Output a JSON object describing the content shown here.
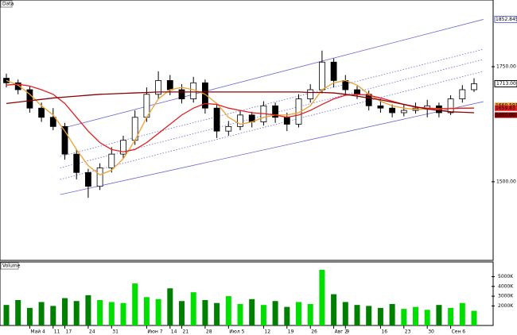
{
  "chart_data": {
    "type": "candlestick",
    "title": "Data",
    "volume_title": "Volume",
    "categories": [
      null,
      null,
      "Май 4",
      null,
      "11",
      "17",
      null,
      "24",
      null,
      "31",
      null,
      null,
      "Июн 7",
      null,
      "14",
      "21",
      null,
      "28",
      null,
      "Июл 5",
      null,
      null,
      "12",
      null,
      "19",
      null,
      "26",
      null,
      "Авг 2",
      "9",
      null,
      null,
      "16",
      null,
      "23",
      null,
      "30",
      null,
      "Сен 6",
      null,
      null
    ],
    "ohlc": [
      [
        1725,
        1735,
        1705,
        1715
      ],
      [
        1715,
        1722,
        1690,
        1700
      ],
      [
        1700,
        1708,
        1650,
        1660
      ],
      [
        1660,
        1672,
        1630,
        1640
      ],
      [
        1640,
        1660,
        1612,
        1620
      ],
      [
        1620,
        1628,
        1548,
        1560
      ],
      [
        1560,
        1570,
        1505,
        1520
      ],
      [
        1520,
        1528,
        1465,
        1490
      ],
      [
        1490,
        1540,
        1482,
        1530
      ],
      [
        1530,
        1575,
        1520,
        1560
      ],
      [
        1560,
        1600,
        1550,
        1590
      ],
      [
        1590,
        1655,
        1580,
        1640
      ],
      [
        1640,
        1705,
        1630,
        1690
      ],
      [
        1690,
        1740,
        1680,
        1720
      ],
      [
        1720,
        1732,
        1688,
        1700
      ],
      [
        1700,
        1712,
        1670,
        1680
      ],
      [
        1680,
        1728,
        1672,
        1715
      ],
      [
        1715,
        1722,
        1648,
        1660
      ],
      [
        1660,
        1668,
        1595,
        1610
      ],
      [
        1610,
        1632,
        1600,
        1620
      ],
      [
        1620,
        1655,
        1612,
        1645
      ],
      [
        1645,
        1652,
        1618,
        1630
      ],
      [
        1630,
        1675,
        1622,
        1665
      ],
      [
        1665,
        1672,
        1628,
        1640
      ],
      [
        1640,
        1650,
        1610,
        1625
      ],
      [
        1625,
        1690,
        1618,
        1680
      ],
      [
        1680,
        1712,
        1672,
        1700
      ],
      [
        1700,
        1785,
        1692,
        1760
      ],
      [
        1760,
        1768,
        1705,
        1720
      ],
      [
        1720,
        1732,
        1690,
        1700
      ],
      [
        1700,
        1708,
        1680,
        1690
      ],
      [
        1690,
        1698,
        1655,
        1665
      ],
      [
        1665,
        1680,
        1650,
        1660
      ],
      [
        1660,
        1668,
        1640,
        1650
      ],
      [
        1650,
        1668,
        1642,
        1655
      ],
      [
        1655,
        1672,
        1648,
        1660
      ],
      [
        1660,
        1678,
        1640,
        1665
      ],
      [
        1665,
        1672,
        1640,
        1650
      ],
      [
        1650,
        1688,
        1645,
        1680
      ],
      [
        1680,
        1710,
        1672,
        1700
      ],
      [
        1700,
        1725,
        1695,
        1713
      ]
    ],
    "last_close_label": "1713.00",
    "volume": [
      2100,
      2600,
      1800,
      2400,
      2000,
      2800,
      2500,
      3100,
      2600,
      2400,
      2300,
      4300,
      2900,
      2700,
      3800,
      2500,
      3400,
      2600,
      2300,
      3000,
      2200,
      2700,
      2100,
      2500,
      1900,
      2400,
      2200,
      5700,
      3200,
      2400,
      2100,
      2000,
      1800,
      2200,
      1700,
      1900,
      1600,
      2100,
      1800,
      2300,
      1500
    ],
    "series": [
      {
        "color": "#f0a030",
        "values": [
          1720,
          1710,
          1690,
          1665,
          1645,
          1610,
          1570,
          1535,
          1515,
          1525,
          1550,
          1590,
          1640,
          1680,
          1700,
          1705,
          1700,
          1690,
          1670,
          1640,
          1625,
          1630,
          1640,
          1645,
          1645,
          1650,
          1665,
          1700,
          1715,
          1720,
          1710,
          1690,
          1675,
          1665,
          1660,
          1657,
          1658,
          1658,
          1660,
          1660,
          1660.5912
        ]
      },
      {
        "color": "#e02020",
        "values": [
          1710,
          1712,
          1708,
          1700,
          1690,
          1670,
          1640,
          1610,
          1585,
          1570,
          1565,
          1570,
          1585,
          1605,
          1625,
          1645,
          1660,
          1670,
          1668,
          1660,
          1655,
          1650,
          1648,
          1645,
          1640,
          1645,
          1655,
          1668,
          1680,
          1688,
          1690,
          1688,
          1682,
          1675,
          1668,
          1662,
          1660,
          1659,
          1659,
          1659.8,
          1659.83
        ]
      },
      {
        "color": "#8b0000",
        "values": [
          1670,
          1673,
          1676,
          1679,
          1682,
          1684,
          1686,
          1688,
          1690,
          1691,
          1692,
          1693,
          1694,
          1695,
          1695,
          1695,
          1695,
          1695,
          1695,
          1695,
          1695,
          1695,
          1695,
          1695,
          1695,
          1695,
          1694,
          1694,
          1693,
          1690,
          1686,
          1682,
          1678,
          1673,
          1668,
          1663,
          1658,
          1655,
          1652,
          1651,
          1650
        ],
        "value_labels": [
          null,
          null,
          null,
          null,
          null,
          null,
          null,
          null,
          null,
          null,
          null,
          null,
          null,
          null,
          null,
          null,
          null,
          null,
          null,
          null,
          null,
          null,
          null,
          null,
          null,
          null,
          null,
          null,
          null,
          null,
          null,
          null,
          null,
          null,
          null,
          null,
          null,
          null,
          null,
          null,
          "1650.00"
        ]
      }
    ],
    "channels": [
      {
        "style": "solid",
        "start": [
          4.6,
          1615
        ],
        "end": [
          40.8,
          1852.8456
        ]
      },
      {
        "style": "dotted",
        "start": [
          4.6,
          1555
        ],
        "end": [
          40.8,
          1788
        ]
      },
      {
        "style": "dotted",
        "start": [
          4.6,
          1530
        ],
        "end": [
          40.8,
          1766
        ]
      },
      {
        "style": "dotted",
        "start": [
          4.6,
          1505
        ],
        "end": [
          40.8,
          1740
        ]
      },
      {
        "style": "solid",
        "start": [
          4.6,
          1472
        ],
        "end": [
          40.8,
          1674
        ]
      }
    ],
    "channel_color": "#6a6ad8",
    "up_color": "#00e000",
    "down_color": "#008000",
    "ylim": [
      1329,
      1895
    ],
    "yticks": [
      {
        "value": 1750,
        "label": "1750.00"
      },
      {
        "value": 1500,
        "label": "1500.00"
      }
    ],
    "y2lim": [
      0,
      6500
    ],
    "y2ticks": [
      {
        "value": 5000,
        "label": "5000K"
      },
      {
        "value": 4000,
        "label": "4000K"
      },
      {
        "value": 3000,
        "label": "3000K"
      },
      {
        "value": 2000,
        "label": "2000K"
      }
    ]
  }
}
